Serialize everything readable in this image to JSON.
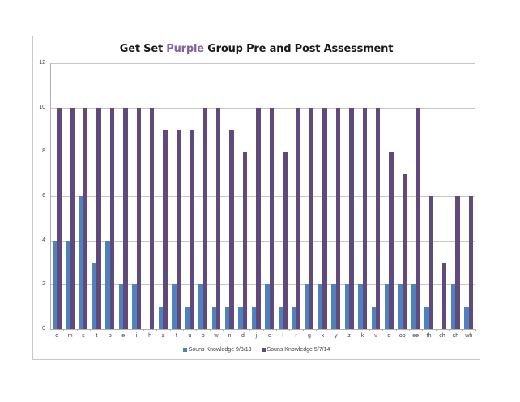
{
  "title": {
    "prefix": "Get Set ",
    "accent_word": "Purple",
    "suffix": " Group Pre and Post Assessment",
    "accent_color": "#8064A2"
  },
  "colors": {
    "series1": "#4F81BD",
    "series2": "#604A7B",
    "grid": "#C6C6C6"
  },
  "chart_data": {
    "type": "bar",
    "title": "Get Set Purple Group Pre and Post Assessment",
    "xlabel": "",
    "ylabel": "",
    "ylim": [
      0,
      12
    ],
    "yticks": [
      0,
      2,
      4,
      6,
      8,
      10,
      12
    ],
    "grid": true,
    "legend_position": "bottom",
    "categories": [
      "o",
      "m",
      "s",
      "t",
      "p",
      "e",
      "i",
      "h",
      "a",
      "f",
      "u",
      "b",
      "w",
      "n",
      "d",
      "j",
      "c",
      "l",
      "r",
      "g",
      "x",
      "y",
      "z",
      "k",
      "v",
      "q",
      "oo",
      "ee",
      "th",
      "ch",
      "sh",
      "wh"
    ],
    "series": [
      {
        "name": "Souns Knowledge 9/3/13",
        "color": "#4F81BD",
        "values": [
          4,
          4,
          6,
          3,
          4,
          2,
          2,
          0,
          1,
          2,
          1,
          2,
          1,
          1,
          1,
          1,
          2,
          1,
          1,
          2,
          2,
          2,
          2,
          2,
          1,
          2,
          2,
          2,
          1,
          0,
          2,
          1
        ]
      },
      {
        "name": "Souns Knowledge 5/7/14",
        "color": "#604A7B",
        "values": [
          10,
          10,
          10,
          10,
          10,
          10,
          10,
          10,
          9,
          9,
          9,
          10,
          10,
          9,
          8,
          10,
          10,
          8,
          10,
          10,
          10,
          10,
          10,
          10,
          10,
          8,
          7,
          10,
          6,
          3,
          6,
          6
        ]
      }
    ]
  }
}
